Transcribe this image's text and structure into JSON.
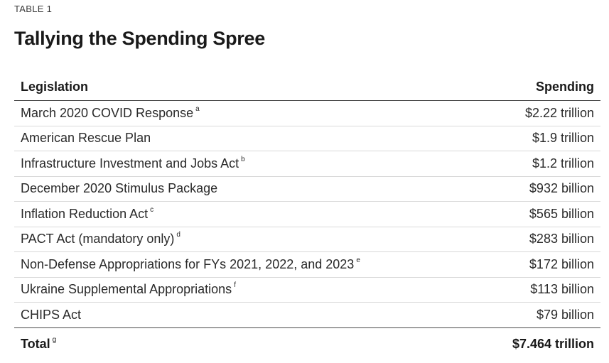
{
  "label": "TABLE 1",
  "title": "Tallying the Spending Spree",
  "columns": {
    "legislation": "Legislation",
    "spending": "Spending"
  },
  "rows": [
    {
      "name": "March 2020 COVID Response",
      "note": "a",
      "amount": "$2.22 trillion"
    },
    {
      "name": "American Rescue Plan",
      "note": "",
      "amount": "$1.9 trillion"
    },
    {
      "name": "Infrastructure Investment and Jobs Act",
      "note": "b",
      "amount": "$1.2 trillion"
    },
    {
      "name": "December 2020 Stimulus Package",
      "note": "",
      "amount": "$932 billion"
    },
    {
      "name": "Inflation Reduction Act",
      "note": "c",
      "amount": "$565 billion"
    },
    {
      "name": "PACT Act (mandatory only)",
      "note": "d",
      "amount": "$283 billion"
    },
    {
      "name": "Non-Defense Appropriations for FYs 2021, 2022, and 2023",
      "note": "e",
      "amount": "$172 billion"
    },
    {
      "name": "Ukraine Supplemental Appropriations",
      "note": "f",
      "amount": "$113 billion"
    },
    {
      "name": "CHIPS Act",
      "note": "",
      "amount": "$79 billion"
    }
  ],
  "total": {
    "label": "Total",
    "note": "g",
    "amount": "$7.464 trillion"
  }
}
